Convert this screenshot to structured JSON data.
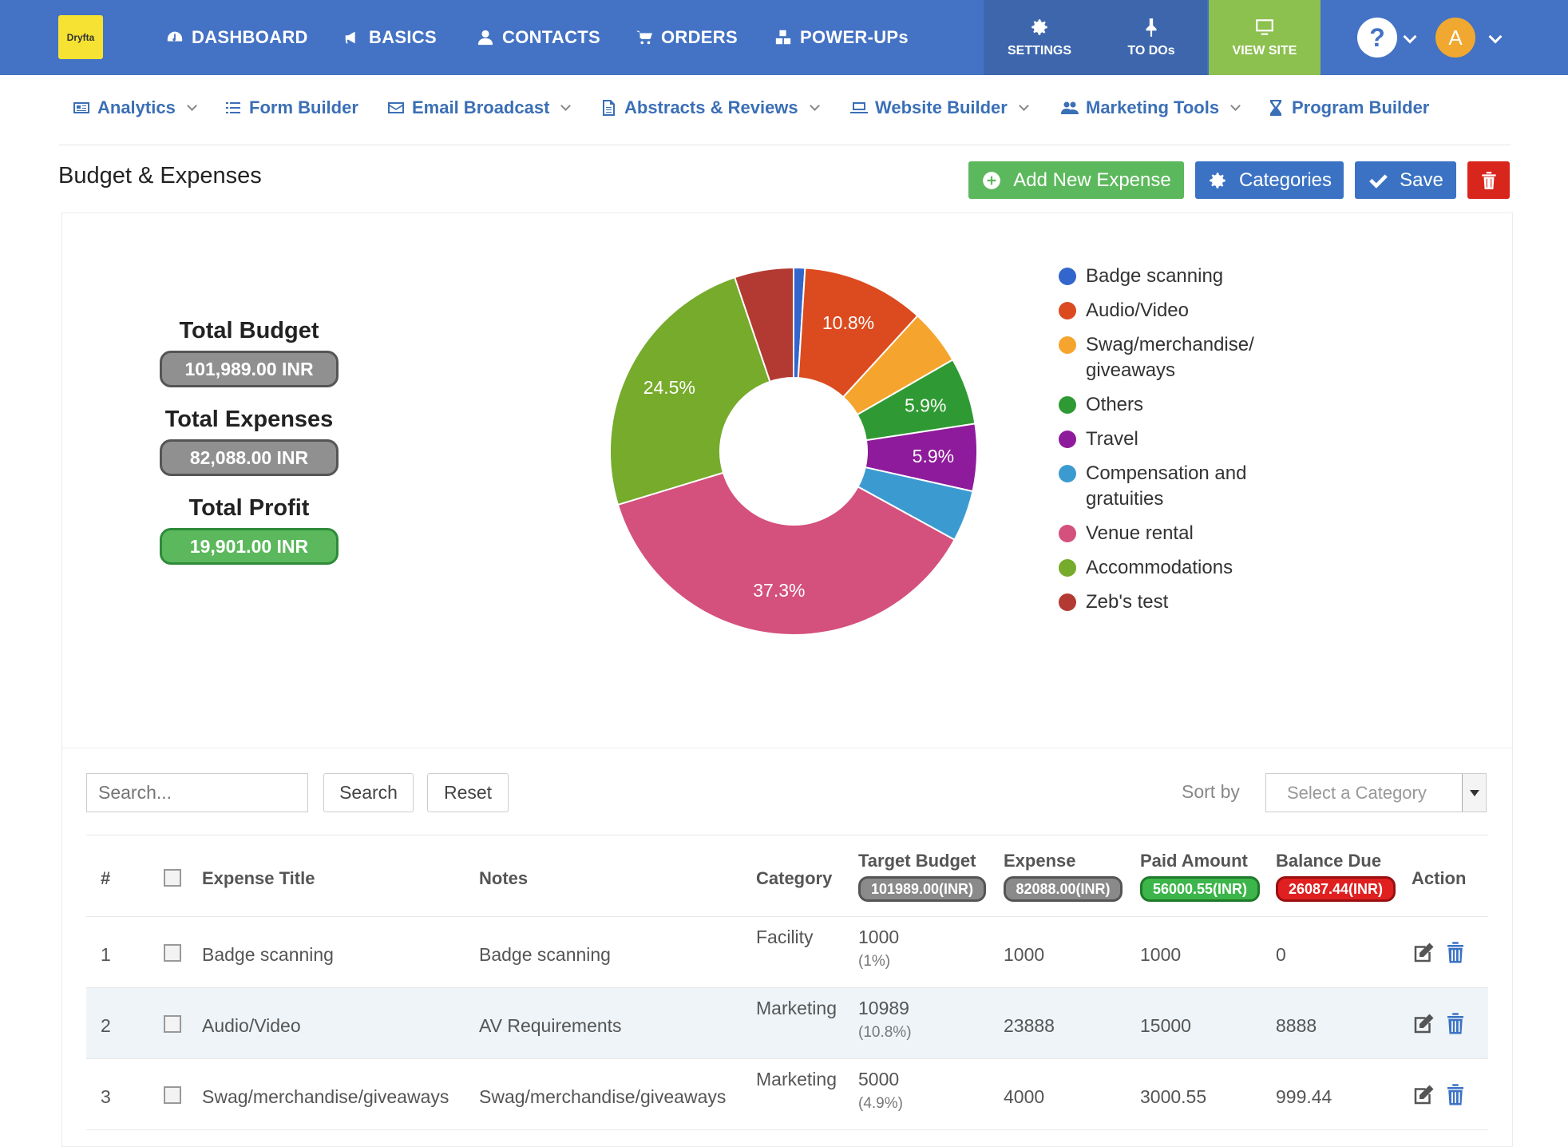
{
  "topbar": {
    "logo": "Dryfta",
    "nav": [
      "DASHBOARD",
      "BASICS",
      "CONTACTS",
      "ORDERS",
      "POWER-UPs"
    ],
    "tools": [
      "SETTINGS",
      "TO DOs",
      "VIEW SITE"
    ],
    "help": "?",
    "avatar": "A",
    "colors": {
      "bar": "#4472c4",
      "view_site": "#8cc04f",
      "tools": "#3d66ad"
    }
  },
  "subnav": [
    "Analytics",
    "Form Builder",
    "Email Broadcast",
    "Abstracts & Reviews",
    "Website Builder",
    "Marketing Tools",
    "Program Builder"
  ],
  "page": {
    "title": "Budget & Expenses",
    "buttons": {
      "add": "Add New Expense",
      "categories": "Categories",
      "save": "Save"
    }
  },
  "totals": {
    "budget_label": "Total Budget",
    "budget_value": "101,989.00 INR",
    "expenses_label": "Total Expenses",
    "expenses_value": "82,088.00 INR",
    "profit_label": "Total Profit",
    "profit_value": "19,901.00 INR"
  },
  "chart_data": {
    "type": "pie",
    "donut": true,
    "categories": [
      "Badge scanning",
      "Audio/Video",
      "Swag/merchandise/giveaways",
      "Others",
      "Travel",
      "Compensation and gratuities",
      "Venue rental",
      "Accommodations",
      "Zeb's test"
    ],
    "legend_labels": [
      "Badge scanning",
      "Audio/Video",
      "Swag/merchandise/ giveaways",
      "Others",
      "Travel",
      "Compensation and gratuities",
      "Venue rental",
      "Accommodations",
      "Zeb's test"
    ],
    "values": [
      1.0,
      10.8,
      4.9,
      5.9,
      5.9,
      4.5,
      37.3,
      24.5,
      5.2
    ],
    "labels_shown": [
      "",
      "10.8%",
      "",
      "5.9%",
      "5.9%",
      "",
      "37.3%",
      "24.5%",
      ""
    ],
    "colors": [
      "#3366cc",
      "#dc4a1f",
      "#f5a52d",
      "#2f9a33",
      "#8e1b9b",
      "#3b9bd1",
      "#d4507d",
      "#76ab2c",
      "#b33a32"
    ],
    "legend_position": "right"
  },
  "controls": {
    "search_placeholder": "Search...",
    "search_button": "Search",
    "reset_button": "Reset",
    "sort_label": "Sort by",
    "select_placeholder": "Select a Category"
  },
  "table": {
    "headers": {
      "num": "#",
      "title": "Expense Title",
      "notes": "Notes",
      "category": "Category",
      "target": "Target Budget",
      "expense": "Expense",
      "paid": "Paid Amount",
      "balance": "Balance Due",
      "action": "Action"
    },
    "header_totals": {
      "target": "101989.00(INR)",
      "expense": "82088.00(INR)",
      "paid": "56000.55(INR)",
      "balance": "26087.44(INR)"
    },
    "rows": [
      {
        "num": "1",
        "title": "Badge scanning",
        "notes": "Badge scanning",
        "category": "Facility",
        "target": "1000",
        "target_pct": "(1%)",
        "expense": "1000",
        "paid": "1000",
        "balance": "0"
      },
      {
        "num": "2",
        "title": "Audio/Video",
        "notes": "AV Requirements",
        "category": "Marketing",
        "target": "10989",
        "target_pct": "(10.8%)",
        "expense": "23888",
        "paid": "15000",
        "balance": "8888"
      },
      {
        "num": "3",
        "title": "Swag/merchandise/giveaways",
        "notes": "Swag/merchandise/giveaways",
        "category": "Marketing",
        "target": "5000",
        "target_pct": "(4.9%)",
        "expense": "4000",
        "paid": "3000.55",
        "balance": "999.44"
      }
    ]
  }
}
